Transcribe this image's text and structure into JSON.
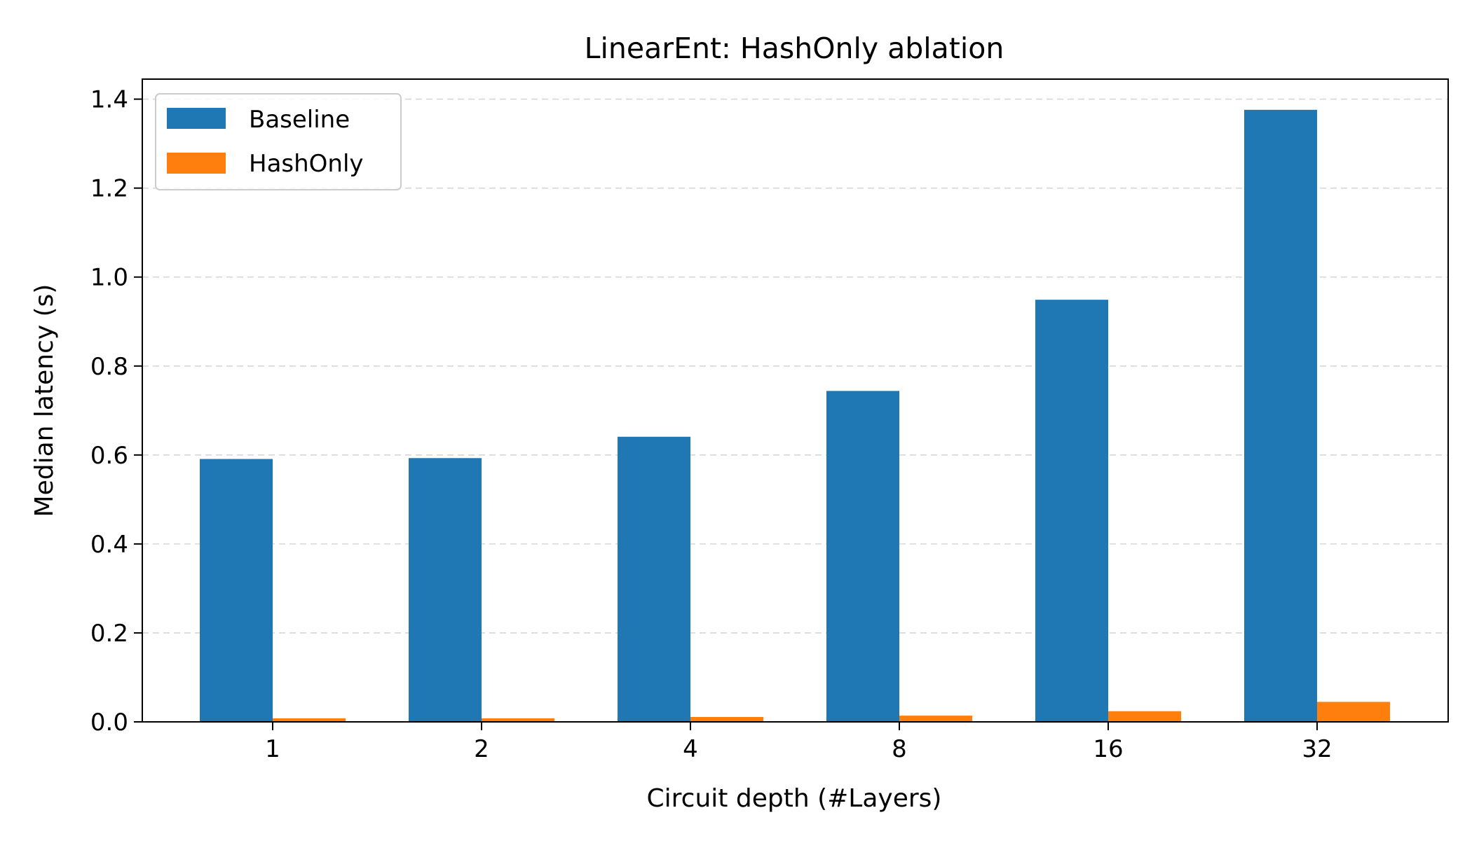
{
  "chart_data": {
    "type": "bar",
    "title": "LinearEnt: HashOnly ablation",
    "xlabel": "Circuit depth (#Layers)",
    "ylabel": "Median latency (s)",
    "categories": [
      "1",
      "2",
      "4",
      "8",
      "16",
      "32"
    ],
    "series": [
      {
        "name": "Baseline",
        "color": "#1f77b4",
        "values": [
          0.591,
          0.593,
          0.641,
          0.744,
          0.949,
          1.376
        ]
      },
      {
        "name": "HashOnly",
        "color": "#ff7f0e",
        "values": [
          0.008,
          0.008,
          0.011,
          0.014,
          0.024,
          0.045
        ]
      }
    ],
    "ylim": [
      0,
      1.445
    ],
    "yticks": [
      0.0,
      0.2,
      0.4,
      0.6,
      0.8,
      1.0,
      1.2,
      1.4
    ],
    "ytick_labels": [
      "0.0",
      "0.2",
      "0.4",
      "0.6",
      "0.8",
      "1.0",
      "1.2",
      "1.4"
    ],
    "grid": "y-dashed",
    "legend_position": "upper-left"
  }
}
